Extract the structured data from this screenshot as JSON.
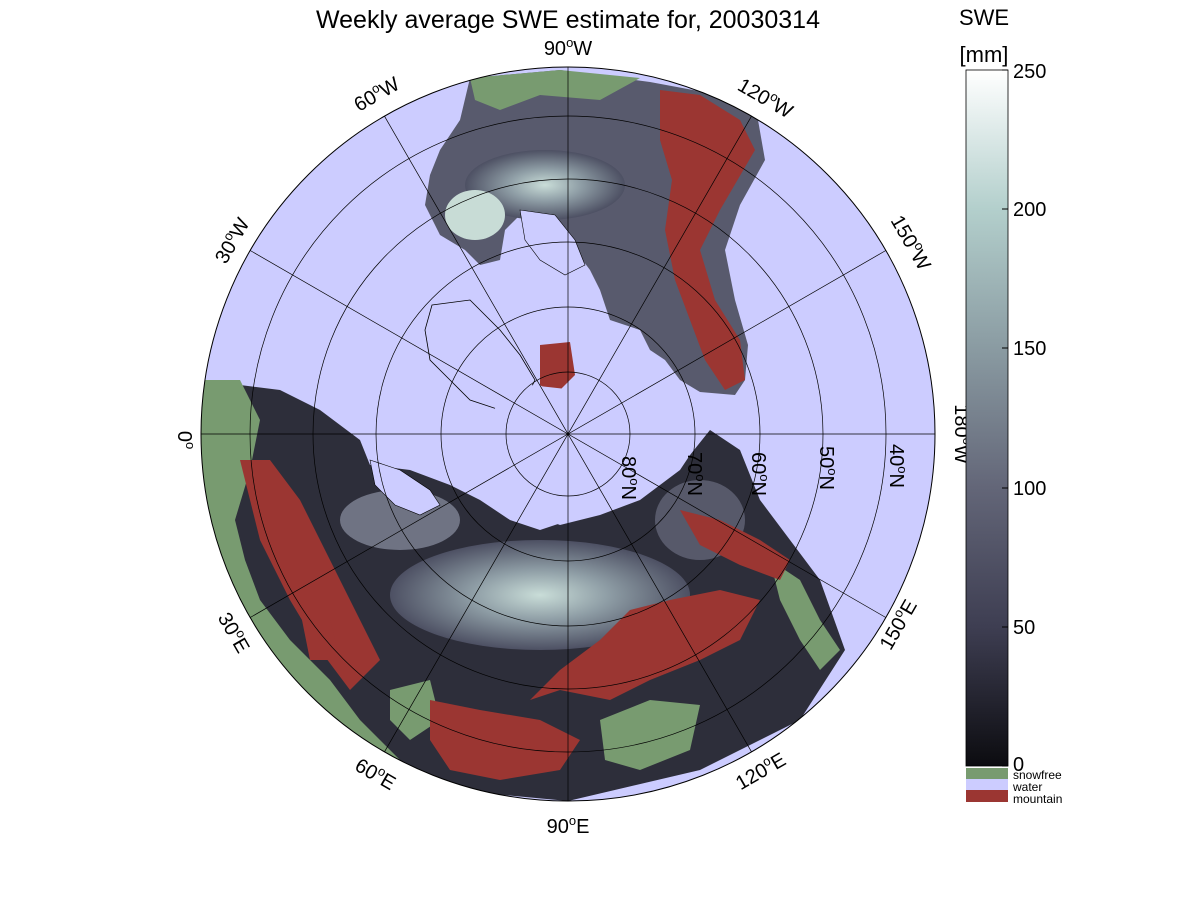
{
  "title": "Weekly average SWE estimate for, 20030314",
  "map": {
    "projection": "north polar stereographic",
    "colors": {
      "water": "#ccccff",
      "snowfree": "#789b70",
      "mountain": "#9b3632",
      "snow_low": "#0d0d12",
      "snow_high": "#ffffff"
    },
    "meridian_labels": [
      {
        "base": "90",
        "deg": "o",
        "hemi": "W"
      },
      {
        "base": "120",
        "deg": "o",
        "hemi": "W"
      },
      {
        "base": "150",
        "deg": "o",
        "hemi": "W"
      },
      {
        "base": "180",
        "deg": "o",
        "hemi": "W"
      },
      {
        "base": "150",
        "deg": "o",
        "hemi": "E"
      },
      {
        "base": "120",
        "deg": "o",
        "hemi": "E"
      },
      {
        "base": "90",
        "deg": "o",
        "hemi": "E"
      },
      {
        "base": "60",
        "deg": "o",
        "hemi": "E"
      },
      {
        "base": "30",
        "deg": "o",
        "hemi": "E"
      },
      {
        "base": "0",
        "deg": "o",
        "hemi": ""
      },
      {
        "base": "30",
        "deg": "o",
        "hemi": "W"
      },
      {
        "base": "60",
        "deg": "o",
        "hemi": "W"
      }
    ],
    "parallel_labels": [
      {
        "base": "80",
        "deg": "o",
        "hemi": "N"
      },
      {
        "base": "70",
        "deg": "o",
        "hemi": "N"
      },
      {
        "base": "60",
        "deg": "o",
        "hemi": "N"
      },
      {
        "base": "50",
        "deg": "o",
        "hemi": "N"
      },
      {
        "base": "40",
        "deg": "o",
        "hemi": "N"
      }
    ]
  },
  "colorbar": {
    "title_line1": "SWE",
    "title_line2": "[mm]",
    "range": [
      0,
      250
    ],
    "ticks": [
      "0",
      "50",
      "100",
      "150",
      "200",
      "250"
    ],
    "categories": [
      {
        "label": "snowfree",
        "color": "#789b70"
      },
      {
        "label": "water",
        "color": "#ccccff"
      },
      {
        "label": "mountain",
        "color": "#9b3632"
      }
    ]
  }
}
